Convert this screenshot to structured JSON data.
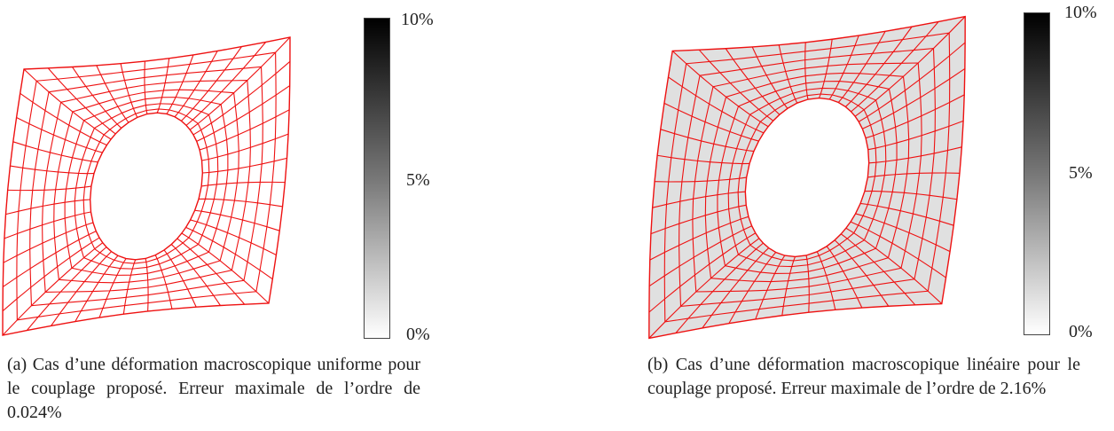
{
  "colors": {
    "mesh_line": "#ee1111",
    "fill_a": "#ffffff",
    "fill_b": "#e0e0e0"
  },
  "panel_a": {
    "colorbar": {
      "top_label": "10%",
      "mid_label": "5%",
      "bottom_label": "0%"
    },
    "caption": "(a) Cas d’une déformation macroscopique uniforme pour le couplage proposé. Erreur maximale de l’ordre de 0.024%"
  },
  "panel_b": {
    "colorbar": {
      "top_label": "10%",
      "mid_label": "5%",
      "bottom_label": "0%"
    },
    "caption": "(b) Cas d’une déformation macroscopique linéaire pour le couplage proposé. Erreur maximale de l’ordre de 2.16%"
  }
}
